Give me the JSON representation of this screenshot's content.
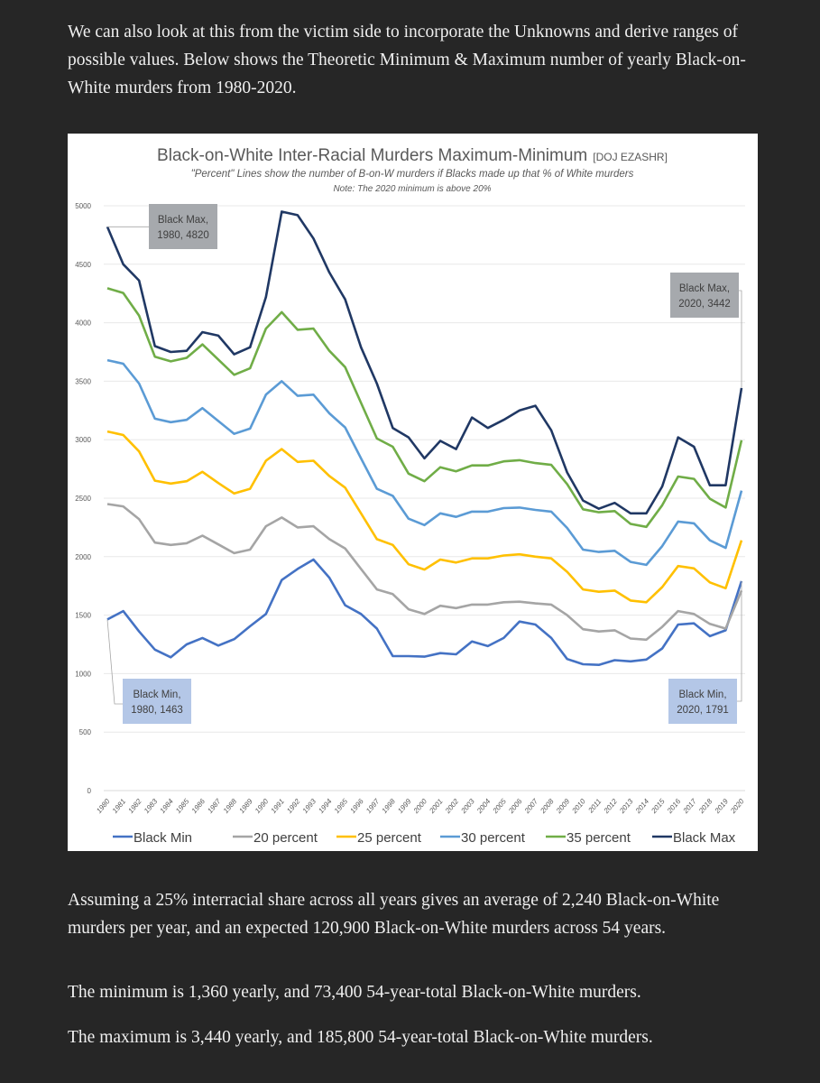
{
  "article": {
    "intro": "We can also look at this from the victim side to incorporate the Unknowns and derive ranges of possible values. Below shows the Theoretic Minimum & Maximum number of yearly Black-on-White murders from 1980-2020.",
    "assumption": "Assuming a 25% interracial share across all years gives an average of 2,240 Black-on-White murders per year, and an expected 120,900 Black-on-White murders across 54 years.",
    "minimum": "The minimum is 1,360 yearly, and 73,400 54-year-total Black-on-White murders.",
    "maximum": "The maximum is 3,440 yearly, and 185,800 54-year-total Black-on-White murders."
  },
  "chart_data": {
    "type": "line",
    "title": "Black-on-White Inter-Racial Murders Maximum-Minimum",
    "title_source": "[DOJ EZASHR]",
    "subtitle": "\"Percent\" Lines show the number of B-on-W murders if Blacks made up that % of White murders",
    "note": "Note: The 2020 minimum is above 20%",
    "xlabel": "",
    "ylabel": "",
    "ylim": [
      0,
      5000
    ],
    "yticks": [
      0,
      500,
      1000,
      1500,
      2000,
      2500,
      3000,
      3500,
      4000,
      4500,
      5000
    ],
    "grid": true,
    "legend_position": "bottom",
    "x": [
      1980,
      1981,
      1982,
      1983,
      1984,
      1985,
      1986,
      1987,
      1988,
      1989,
      1990,
      1991,
      1992,
      1993,
      1994,
      1995,
      1996,
      1997,
      1998,
      1999,
      2000,
      2001,
      2002,
      2003,
      2004,
      2005,
      2006,
      2007,
      2008,
      2009,
      2010,
      2011,
      2012,
      2013,
      2014,
      2015,
      2016,
      2017,
      2018,
      2019,
      2020
    ],
    "series": [
      {
        "name": "Black Min",
        "color": "#4472c4",
        "values": [
          1463,
          1535,
          1360,
          1205,
          1140,
          1250,
          1305,
          1240,
          1295,
          1405,
          1510,
          1800,
          1895,
          1975,
          1820,
          1585,
          1510,
          1385,
          1150,
          1150,
          1145,
          1175,
          1165,
          1275,
          1235,
          1305,
          1445,
          1420,
          1305,
          1125,
          1080,
          1075,
          1115,
          1105,
          1120,
          1215,
          1420,
          1430,
          1320,
          1370,
          1791
        ]
      },
      {
        "name": "20 percent",
        "color": "#a5a5a5",
        "values": [
          2450,
          2430,
          2320,
          2120,
          2100,
          2115,
          2180,
          2105,
          2030,
          2060,
          2260,
          2335,
          2250,
          2260,
          2150,
          2070,
          1895,
          1720,
          1680,
          1550,
          1510,
          1580,
          1560,
          1590,
          1590,
          1610,
          1615,
          1600,
          1590,
          1500,
          1380,
          1360,
          1370,
          1300,
          1290,
          1400,
          1535,
          1510,
          1425,
          1385,
          1710
        ]
      },
      {
        "name": "25 percent",
        "color": "#ffc000",
        "values": [
          3070,
          3040,
          2900,
          2650,
          2625,
          2645,
          2725,
          2630,
          2540,
          2580,
          2820,
          2920,
          2810,
          2820,
          2690,
          2590,
          2370,
          2150,
          2100,
          1935,
          1890,
          1975,
          1950,
          1985,
          1985,
          2010,
          2020,
          2000,
          1985,
          1870,
          1720,
          1700,
          1710,
          1625,
          1610,
          1740,
          1920,
          1900,
          1780,
          1730,
          2140
        ]
      },
      {
        "name": "30 percent",
        "color": "#5b9bd5",
        "values": [
          3680,
          3650,
          3480,
          3180,
          3150,
          3170,
          3270,
          3160,
          3050,
          3095,
          3385,
          3500,
          3375,
          3385,
          3225,
          3105,
          2840,
          2580,
          2520,
          2325,
          2270,
          2370,
          2340,
          2385,
          2385,
          2415,
          2420,
          2400,
          2385,
          2245,
          2060,
          2040,
          2050,
          1955,
          1930,
          2090,
          2300,
          2285,
          2140,
          2075,
          2565
        ]
      },
      {
        "name": "35 percent",
        "color": "#70ad47",
        "values": [
          4295,
          4255,
          4060,
          3710,
          3670,
          3700,
          3815,
          3685,
          3555,
          3610,
          3950,
          4090,
          3940,
          3950,
          3760,
          3620,
          3315,
          3010,
          2940,
          2710,
          2645,
          2765,
          2730,
          2780,
          2780,
          2815,
          2825,
          2800,
          2785,
          2620,
          2405,
          2380,
          2390,
          2280,
          2255,
          2440,
          2685,
          2665,
          2495,
          2420,
          2995
        ]
      },
      {
        "name": "Black Max",
        "color": "#203864",
        "values": [
          4820,
          4500,
          4360,
          3800,
          3750,
          3760,
          3920,
          3890,
          3730,
          3790,
          4220,
          4950,
          4920,
          4720,
          4430,
          4200,
          3790,
          3480,
          3100,
          3020,
          2840,
          2990,
          2920,
          3190,
          3100,
          3170,
          3250,
          3290,
          3080,
          2720,
          2480,
          2410,
          2460,
          2370,
          2370,
          2600,
          3020,
          2940,
          2610,
          2610,
          3442
        ]
      }
    ],
    "annotations": [
      {
        "series": "Black Max",
        "year": 1980,
        "value": 4820,
        "line1": "Black Max,",
        "line2": "1980, 4820",
        "color": "#a6a9ad"
      },
      {
        "series": "Black Max",
        "year": 2020,
        "value": 3442,
        "line1": "Black Max,",
        "line2": "2020, 3442",
        "color": "#a6a9ad"
      },
      {
        "series": "Black Min",
        "year": 1980,
        "value": 1463,
        "line1": "Black Min,",
        "line2": "1980, 1463",
        "color": "#b4c7e7"
      },
      {
        "series": "Black Min",
        "year": 2020,
        "value": 1791,
        "line1": "Black Min,",
        "line2": "2020, 1791",
        "color": "#b4c7e7"
      }
    ]
  }
}
